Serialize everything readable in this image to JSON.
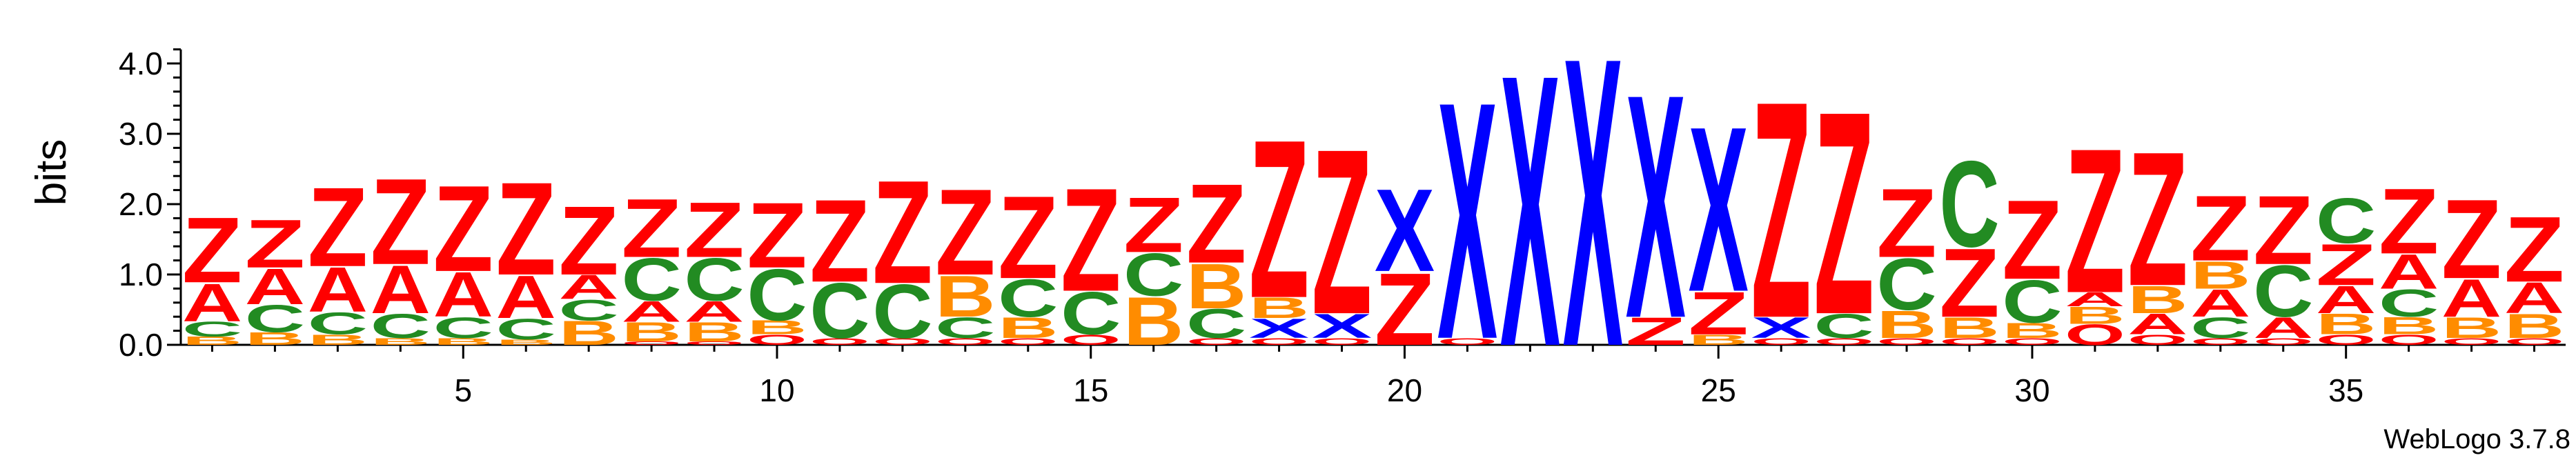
{
  "chart_data": {
    "type": "sequence-logo",
    "ylabel": "bits",
    "ylim": [
      0,
      4.2
    ],
    "y_ticks": [
      "0.0",
      "1.0",
      "2.0",
      "3.0",
      "4.0"
    ],
    "x_ticks": [
      "5",
      "10",
      "15",
      "20",
      "25",
      "30",
      "35"
    ],
    "footer": "WebLogo 3.7.8",
    "colors": {
      "A": "#ff0000",
      "Z": "#ff0000",
      "B": "#ff8c00",
      "C": "#228b22",
      "X": "#0000ff",
      "O": "#ff0000"
    },
    "positions": [
      {
        "pos": 1,
        "stack": [
          [
            "B",
            0.12
          ],
          [
            "C",
            0.22
          ],
          [
            "A",
            0.55
          ],
          [
            "Z",
            0.95
          ]
        ]
      },
      {
        "pos": 2,
        "stack": [
          [
            "B",
            0.18
          ],
          [
            "C",
            0.4
          ],
          [
            "A",
            0.52
          ],
          [
            "Z",
            0.7
          ]
        ]
      },
      {
        "pos": 3,
        "stack": [
          [
            "B",
            0.15
          ],
          [
            "C",
            0.32
          ],
          [
            "A",
            0.65
          ],
          [
            "Z",
            1.15
          ]
        ]
      },
      {
        "pos": 4,
        "stack": [
          [
            "B",
            0.1
          ],
          [
            "C",
            0.35
          ],
          [
            "A",
            0.7
          ],
          [
            "Z",
            1.25
          ]
        ]
      },
      {
        "pos": 5,
        "stack": [
          [
            "B",
            0.1
          ],
          [
            "C",
            0.3
          ],
          [
            "A",
            0.65
          ],
          [
            "Z",
            1.25
          ]
        ]
      },
      {
        "pos": 6,
        "stack": [
          [
            "B",
            0.08
          ],
          [
            "C",
            0.3
          ],
          [
            "A",
            0.62
          ],
          [
            "Z",
            1.35
          ]
        ]
      },
      {
        "pos": 7,
        "stack": [
          [
            "B",
            0.35
          ],
          [
            "C",
            0.3
          ],
          [
            "A",
            0.35
          ],
          [
            "Z",
            1.0
          ]
        ]
      },
      {
        "pos": 8,
        "stack": [
          [
            "O",
            0.05
          ],
          [
            "B",
            0.28
          ],
          [
            "A",
            0.3
          ],
          [
            "C",
            0.62
          ],
          [
            "Z",
            0.85
          ]
        ]
      },
      {
        "pos": 9,
        "stack": [
          [
            "O",
            0.05
          ],
          [
            "B",
            0.28
          ],
          [
            "A",
            0.3
          ],
          [
            "C",
            0.62
          ],
          [
            "Z",
            0.8
          ]
        ]
      },
      {
        "pos": 10,
        "stack": [
          [
            "O",
            0.15
          ],
          [
            "B",
            0.2
          ],
          [
            "C",
            0.75
          ],
          [
            "Z",
            0.95
          ]
        ]
      },
      {
        "pos": 11,
        "stack": [
          [
            "O",
            0.1
          ],
          [
            "C",
            0.8
          ],
          [
            "Z",
            1.2
          ]
        ]
      },
      {
        "pos": 12,
        "stack": [
          [
            "O",
            0.1
          ],
          [
            "C",
            0.78
          ],
          [
            "Z",
            1.5
          ]
        ]
      },
      {
        "pos": 13,
        "stack": [
          [
            "O",
            0.1
          ],
          [
            "C",
            0.3
          ],
          [
            "B",
            0.6
          ],
          [
            "Z",
            1.25
          ]
        ]
      },
      {
        "pos": 14,
        "stack": [
          [
            "O",
            0.1
          ],
          [
            "B",
            0.3
          ],
          [
            "C",
            0.55
          ],
          [
            "Z",
            1.2
          ]
        ]
      },
      {
        "pos": 15,
        "stack": [
          [
            "O",
            0.15
          ],
          [
            "C",
            0.62
          ],
          [
            "Z",
            1.5
          ]
        ]
      },
      {
        "pos": 16,
        "stack": [
          [
            "B",
            0.7
          ],
          [
            "C",
            0.62
          ],
          [
            "Z",
            0.8
          ]
        ]
      },
      {
        "pos": 17,
        "stack": [
          [
            "O",
            0.1
          ],
          [
            "C",
            0.42
          ],
          [
            "B",
            0.65
          ],
          [
            "Z",
            1.15
          ]
        ]
      },
      {
        "pos": 18,
        "stack": [
          [
            "O",
            0.1
          ],
          [
            "X",
            0.28
          ],
          [
            "B",
            0.3
          ],
          [
            "Z",
            2.3
          ]
        ]
      },
      {
        "pos": 19,
        "stack": [
          [
            "O",
            0.1
          ],
          [
            "X",
            0.35
          ],
          [
            "Z",
            2.4
          ]
        ]
      },
      {
        "pos": 20,
        "stack": [
          [
            "Z",
            1.05
          ],
          [
            "X",
            1.2
          ]
        ]
      },
      {
        "pos": 21,
        "stack": [
          [
            "O",
            0.1
          ],
          [
            "X",
            3.45
          ]
        ]
      },
      {
        "pos": 22,
        "stack": [
          [
            "X",
            3.95
          ]
        ]
      },
      {
        "pos": 23,
        "stack": [
          [
            "X",
            4.2
          ]
        ]
      },
      {
        "pos": 24,
        "stack": [
          [
            "Z",
            0.4
          ],
          [
            "X",
            3.25
          ]
        ]
      },
      {
        "pos": 25,
        "stack": [
          [
            "B",
            0.15
          ],
          [
            "Z",
            0.62
          ],
          [
            "X",
            2.4
          ]
        ]
      },
      {
        "pos": 26,
        "stack": [
          [
            "O",
            0.1
          ],
          [
            "X",
            0.3
          ],
          [
            "Z",
            3.15
          ]
        ]
      },
      {
        "pos": 27,
        "stack": [
          [
            "O",
            0.1
          ],
          [
            "C",
            0.35
          ],
          [
            "Z",
            2.95
          ]
        ]
      },
      {
        "pos": 28,
        "stack": [
          [
            "O",
            0.1
          ],
          [
            "B",
            0.4
          ],
          [
            "C",
            0.75
          ],
          [
            "Z",
            1.0
          ]
        ]
      },
      {
        "pos": 29,
        "stack": [
          [
            "O",
            0.1
          ],
          [
            "B",
            0.3
          ],
          [
            "Z",
            1.0
          ],
          [
            "C",
            1.25
          ]
        ]
      },
      {
        "pos": 30,
        "stack": [
          [
            "O",
            0.1
          ],
          [
            "B",
            0.22
          ],
          [
            "C",
            0.62
          ],
          [
            "Z",
            1.15
          ]
        ]
      },
      {
        "pos": 31,
        "stack": [
          [
            "O",
            0.3
          ],
          [
            "B",
            0.25
          ],
          [
            "A",
            0.2
          ],
          [
            "Z",
            2.1
          ]
        ]
      },
      {
        "pos": 32,
        "stack": [
          [
            "O",
            0.15
          ],
          [
            "A",
            0.3
          ],
          [
            "B",
            0.4
          ],
          [
            "Z",
            1.95
          ]
        ]
      },
      {
        "pos": 33,
        "stack": [
          [
            "O",
            0.1
          ],
          [
            "C",
            0.3
          ],
          [
            "A",
            0.4
          ],
          [
            "B",
            0.4
          ],
          [
            "Z",
            0.95
          ]
        ]
      },
      {
        "pos": 34,
        "stack": [
          [
            "O",
            0.1
          ],
          [
            "A",
            0.3
          ],
          [
            "C",
            0.75
          ],
          [
            "Z",
            1.0
          ]
        ]
      },
      {
        "pos": 35,
        "stack": [
          [
            "O",
            0.15
          ],
          [
            "B",
            0.3
          ],
          [
            "A",
            0.4
          ],
          [
            "Z",
            0.6
          ],
          [
            "C",
            0.65
          ]
        ]
      },
      {
        "pos": 36,
        "stack": [
          [
            "O",
            0.15
          ],
          [
            "B",
            0.25
          ],
          [
            "C",
            0.4
          ],
          [
            "A",
            0.5
          ],
          [
            "Z",
            0.95
          ]
        ]
      },
      {
        "pos": 37,
        "stack": [
          [
            "O",
            0.1
          ],
          [
            "B",
            0.3
          ],
          [
            "A",
            0.55
          ],
          [
            "Z",
            1.15
          ]
        ]
      },
      {
        "pos": 38,
        "stack": [
          [
            "O",
            0.1
          ],
          [
            "B",
            0.35
          ],
          [
            "A",
            0.45
          ],
          [
            "Z",
            0.95
          ]
        ]
      }
    ]
  }
}
